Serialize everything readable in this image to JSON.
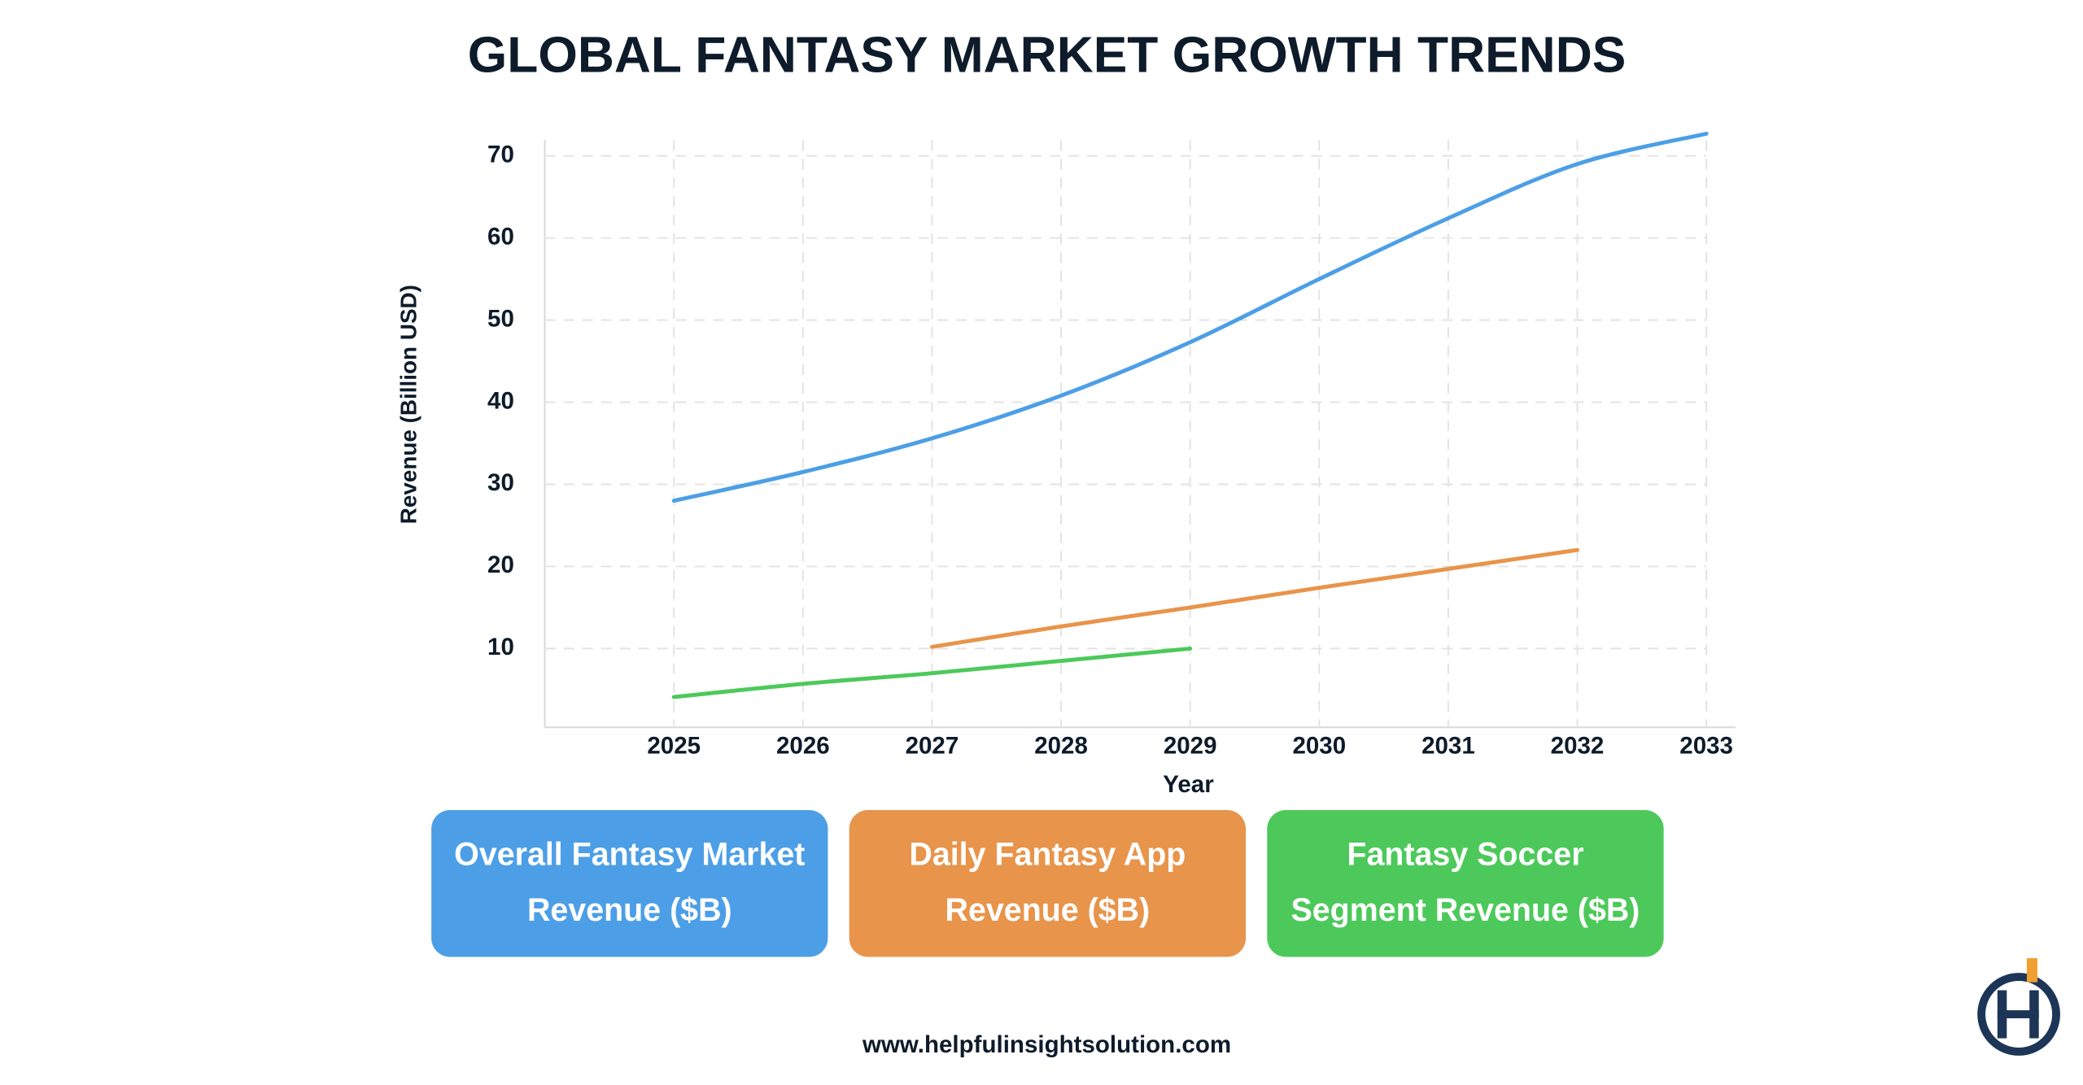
{
  "chart_data": {
    "type": "line",
    "title": "GLOBAL FANTASY MARKET GROWTH TRENDS",
    "x_label": "Year",
    "y_label": "Revenue (Billion USD)",
    "x": [
      2025,
      2026,
      2027,
      2028,
      2029,
      2030,
      2031,
      2032,
      2033
    ],
    "xlim": [
      2024,
      2033
    ],
    "xticks": [
      2025,
      2026,
      2027,
      2028,
      2029,
      2030,
      2031,
      2032,
      2033
    ],
    "ylim": [
      0,
      75
    ],
    "yticks": [
      10,
      20,
      30,
      40,
      50,
      60,
      70
    ],
    "grid": true,
    "series": [
      {
        "name": "Overall Fantasy Market Revenue ($B)",
        "color": "#4c9fe6",
        "values": [
          28,
          31.5,
          35.6,
          40.8,
          47.3,
          55,
          62.4,
          69,
          72.7
        ]
      },
      {
        "name": "Daily Fantasy App Revenue ($B)",
        "color": "#e8944a",
        "values": [
          null,
          null,
          10.2,
          12.7,
          15,
          17.4,
          19.7,
          22,
          null
        ]
      },
      {
        "name": "Fantasy Soccer Segment Revenue ($B)",
        "color": "#4cc95a",
        "values": [
          4.1,
          5.7,
          7,
          8.5,
          10,
          null,
          null,
          null,
          null
        ]
      }
    ]
  },
  "footer": "www.helpfulinsightsolution.com"
}
